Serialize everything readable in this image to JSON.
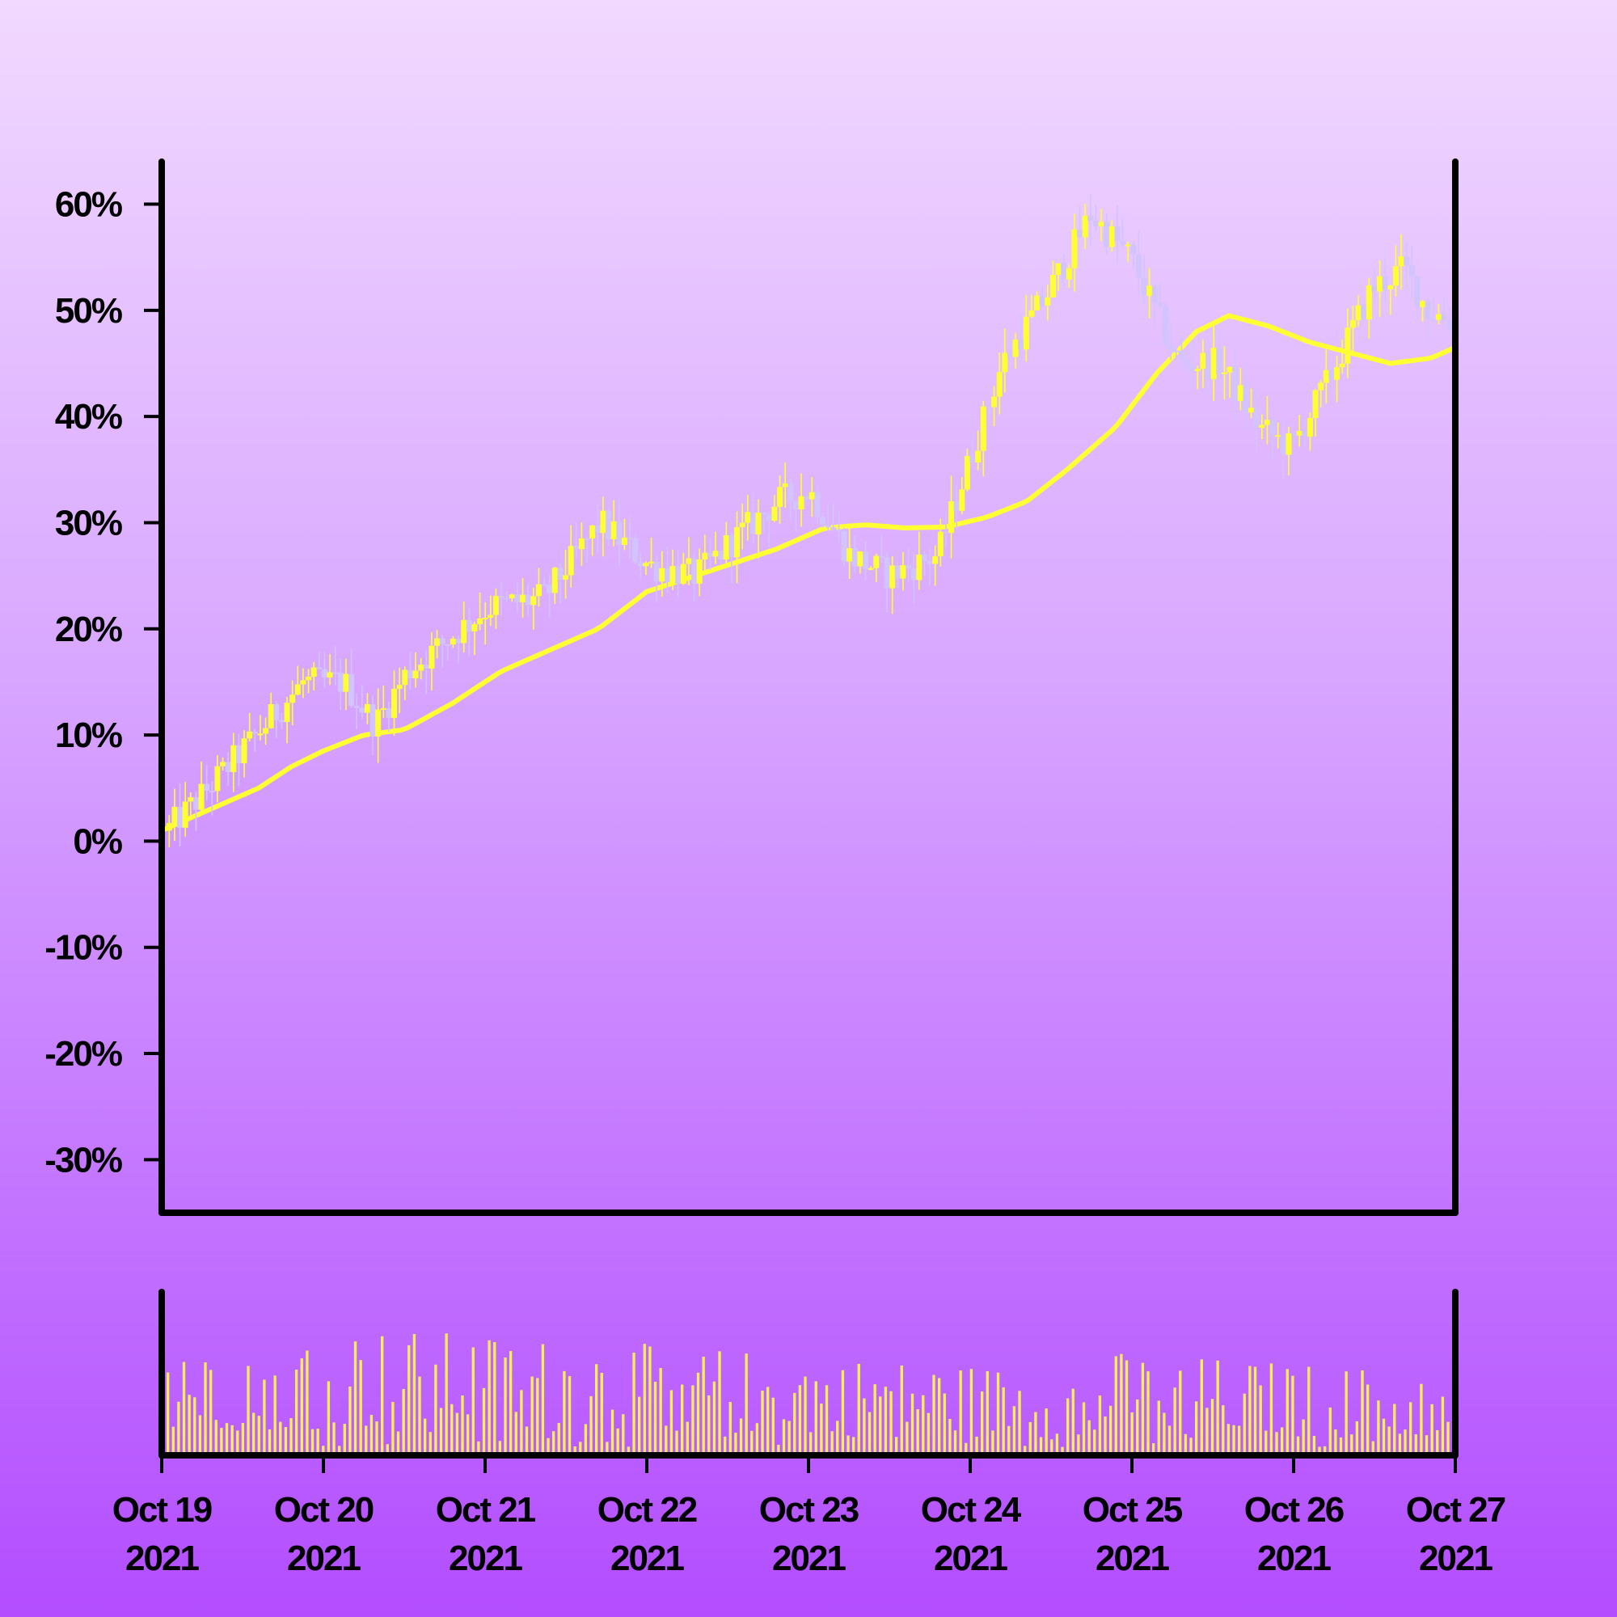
{
  "chart_data": {
    "type": "candlestick",
    "title": "",
    "xlabel": "",
    "ylabel": "",
    "ylim": [
      -35,
      64
    ],
    "yticks": [
      "60%",
      "50%",
      "40%",
      "30%",
      "20%",
      "10%",
      "0%",
      "-10%",
      "-20%",
      "-30%"
    ],
    "ytick_values": [
      60,
      50,
      40,
      30,
      20,
      10,
      0,
      -10,
      -20,
      -30
    ],
    "xlim_days": [
      0,
      8
    ],
    "xticks": [
      {
        "line1": "Oct 19",
        "line2": "2021"
      },
      {
        "line1": "Oct 20",
        "line2": "2021"
      },
      {
        "line1": "Oct 21",
        "line2": "2021"
      },
      {
        "line1": "Oct 22",
        "line2": "2021"
      },
      {
        "line1": "Oct 23",
        "line2": "2021"
      },
      {
        "line1": "Oct 24",
        "line2": "2021"
      },
      {
        "line1": "Oct 25",
        "line2": "2021"
      },
      {
        "line1": "Oct 26",
        "line2": "2021"
      },
      {
        "line1": "Oct 27",
        "line2": "2021"
      }
    ],
    "price_path": [
      [
        0.0,
        1
      ],
      [
        0.2,
        4
      ],
      [
        0.5,
        9
      ],
      [
        0.85,
        15
      ],
      [
        1.1,
        15
      ],
      [
        1.3,
        11
      ],
      [
        1.5,
        16
      ],
      [
        2.0,
        22
      ],
      [
        2.35,
        23
      ],
      [
        2.7,
        30
      ],
      [
        3.0,
        26
      ],
      [
        3.3,
        25
      ],
      [
        3.5,
        28
      ],
      [
        3.8,
        32
      ],
      [
        4.0,
        33
      ],
      [
        4.25,
        27
      ],
      [
        4.5,
        25
      ],
      [
        4.8,
        27
      ],
      [
        5.0,
        36
      ],
      [
        5.2,
        45
      ],
      [
        5.5,
        52
      ],
      [
        5.75,
        59
      ],
      [
        6.0,
        55
      ],
      [
        6.3,
        45
      ],
      [
        6.55,
        45
      ],
      [
        6.8,
        39
      ],
      [
        7.0,
        37
      ],
      [
        7.25,
        44
      ],
      [
        7.5,
        52
      ],
      [
        7.7,
        54
      ],
      [
        7.85,
        50
      ],
      [
        8.0,
        49
      ]
    ],
    "moving_average": [
      [
        0.0,
        1
      ],
      [
        0.3,
        3
      ],
      [
        0.6,
        5
      ],
      [
        0.8,
        7
      ],
      [
        1.0,
        8.5
      ],
      [
        1.25,
        10
      ],
      [
        1.5,
        10.5
      ],
      [
        1.8,
        13
      ],
      [
        2.1,
        16
      ],
      [
        2.4,
        18
      ],
      [
        2.7,
        20
      ],
      [
        3.0,
        23.5
      ],
      [
        3.3,
        25
      ],
      [
        3.5,
        26
      ],
      [
        3.8,
        27.5
      ],
      [
        4.1,
        29.5
      ],
      [
        4.35,
        29.8
      ],
      [
        4.6,
        29.5
      ],
      [
        4.85,
        29.6
      ],
      [
        5.1,
        30.5
      ],
      [
        5.35,
        32
      ],
      [
        5.6,
        35
      ],
      [
        5.9,
        39
      ],
      [
        6.15,
        44
      ],
      [
        6.4,
        48
      ],
      [
        6.6,
        49.5
      ],
      [
        6.85,
        48.5
      ],
      [
        7.1,
        47
      ],
      [
        7.35,
        46
      ],
      [
        7.6,
        45
      ],
      [
        7.85,
        45.5
      ],
      [
        8.0,
        46.5
      ]
    ],
    "candle_count": 240,
    "colors": {
      "up": "#ffff33",
      "down": "#d2c4ff",
      "moving_average": "#ffff33",
      "volume": "#ffee55",
      "axis": "#000000"
    }
  }
}
